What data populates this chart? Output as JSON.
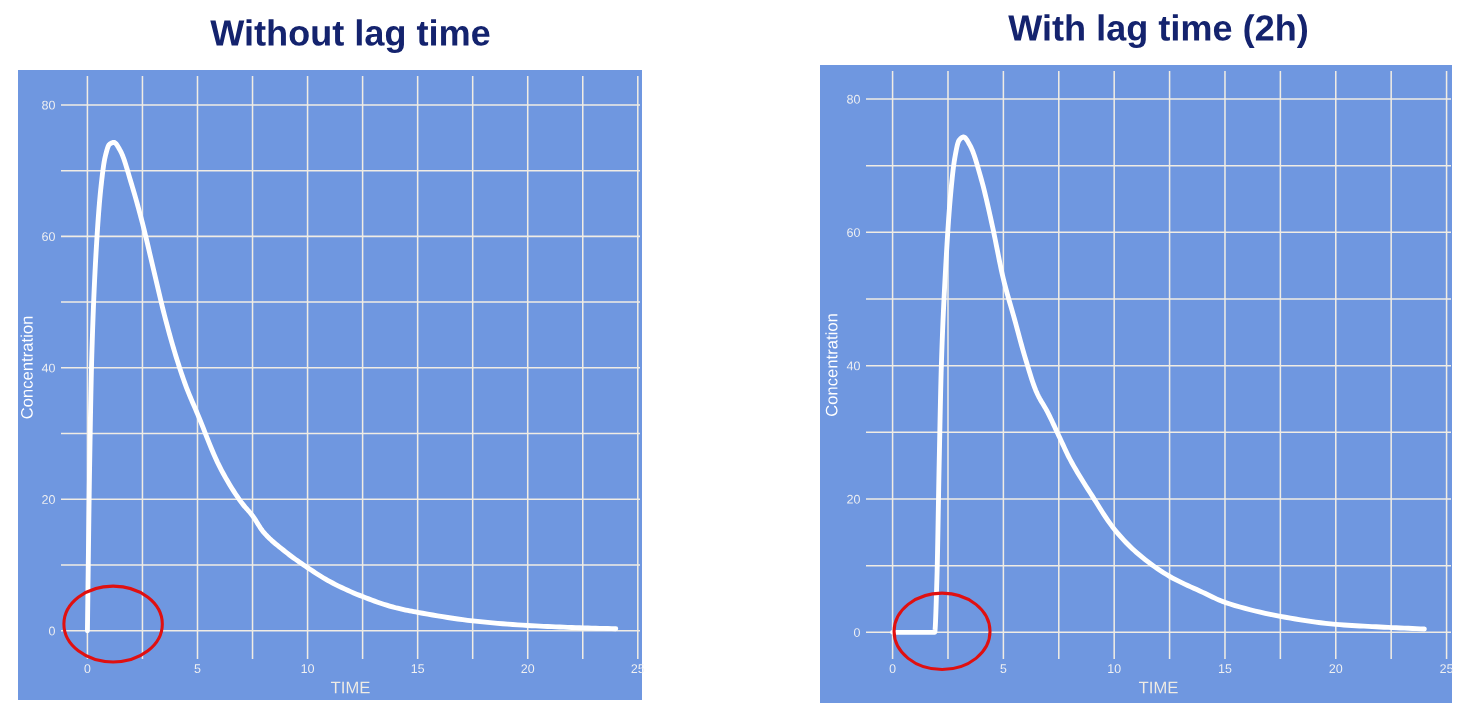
{
  "chart_data": [
    {
      "type": "line",
      "title": "Without lag time",
      "xlabel": "TIME",
      "ylabel": "Concentration",
      "xlim": [
        -1.2,
        25.1
      ],
      "ylim": [
        -4.3,
        84.4
      ],
      "xticks": [
        0,
        {
          "value": 2.5,
          "label": null
        },
        5,
        {
          "value": 7.5,
          "label": null
        },
        10,
        {
          "value": 12.5,
          "label": null
        },
        15,
        {
          "value": 17.5,
          "label": null
        },
        20,
        {
          "value": 22.5,
          "label": null
        },
        25
      ],
      "yticks": [
        0,
        {
          "value": 10,
          "label": null
        },
        20,
        {
          "value": 30,
          "label": null
        },
        40,
        {
          "value": 50,
          "label": null
        },
        60,
        {
          "value": 70,
          "label": null
        },
        80
      ],
      "grid": true,
      "series": [
        {
          "color": "#ffffff",
          "x": [
            0,
            0.1,
            0.2,
            0.4,
            0.6,
            0.8,
            1.0,
            1.2,
            1.5,
            2,
            2.5,
            3,
            3.5,
            4,
            4.5,
            5,
            6,
            7,
            7.5,
            8,
            9,
            10,
            11,
            12.5,
            14,
            15,
            17.5,
            20,
            22,
            24
          ],
          "values": [
            0,
            25,
            42,
            58,
            67,
            72,
            74,
            74.3,
            73,
            68,
            62,
            55,
            48,
            42,
            37,
            33,
            25,
            19.5,
            17.5,
            15,
            12,
            9.6,
            7.5,
            5.2,
            3.5,
            2.8,
            1.5,
            0.8,
            0.5,
            0.3
          ]
        }
      ]
    },
    {
      "type": "line",
      "title": "With lag time (2h)",
      "xlabel": "TIME",
      "ylabel": "Concentration",
      "xlim": [
        -1.2,
        25.2
      ],
      "ylim": [
        -4,
        84.2
      ],
      "xticks": [
        0,
        {
          "value": 2.5,
          "label": null
        },
        5,
        {
          "value": 7.5,
          "label": null
        },
        10,
        {
          "value": 12.5,
          "label": null
        },
        15,
        {
          "value": 17.5,
          "label": null
        },
        20,
        {
          "value": 22.5,
          "label": null
        },
        25
      ],
      "yticks": [
        0,
        {
          "value": 10,
          "label": null
        },
        20,
        {
          "value": 30,
          "label": null
        },
        40,
        {
          "value": 50,
          "label": null
        },
        60,
        {
          "value": 70,
          "label": null
        },
        80
      ],
      "grid": true,
      "series": [
        {
          "color": "#ffffff",
          "x": [
            0,
            1.9,
            2.0,
            2.1,
            2.2,
            2.4,
            2.6,
            2.8,
            3.0,
            3.2,
            3.5,
            4,
            4.5,
            5,
            5.5,
            6,
            6.5,
            7,
            7.5,
            8,
            9,
            10,
            11,
            12.5,
            14,
            15,
            17.5,
            20,
            22,
            24
          ],
          "values": [
            0,
            0,
            8,
            25,
            40,
            55,
            65,
            71,
            73.8,
            74.3,
            73,
            68,
            61,
            53,
            47,
            41,
            36,
            33,
            29.5,
            26,
            20.5,
            15.5,
            12,
            8.4,
            6,
            4.5,
            2.4,
            1.2,
            0.8,
            0.5
          ]
        }
      ]
    }
  ]
}
